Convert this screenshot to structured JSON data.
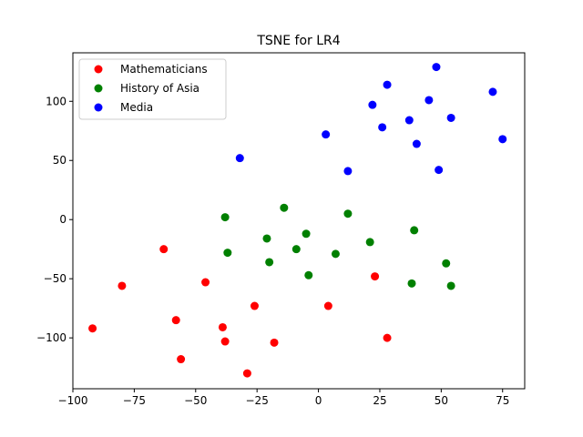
{
  "chart_data": {
    "type": "scatter",
    "title": "TSNE for LR4",
    "xlabel": "",
    "ylabel": "",
    "xlim": [
      -100,
      84
    ],
    "ylim": [
      -143,
      141
    ],
    "xticks": [
      -100,
      -75,
      -50,
      -25,
      0,
      25,
      50,
      75
    ],
    "yticks": [
      -100,
      -50,
      0,
      50,
      100
    ],
    "xtick_labels": [
      "−100",
      "−75",
      "−50",
      "−25",
      "0",
      "25",
      "50",
      "75"
    ],
    "ytick_labels": [
      "−100",
      "−50",
      "0",
      "50",
      "100"
    ],
    "legend_position": "upper-left",
    "grid": false,
    "series": [
      {
        "name": "Mathematicians",
        "color": "#ff0000",
        "points": [
          [
            -63,
            -25
          ],
          [
            -80,
            -56
          ],
          [
            -46,
            -53
          ],
          [
            -92,
            -92
          ],
          [
            -58,
            -85
          ],
          [
            -56,
            -118
          ],
          [
            -39,
            -91
          ],
          [
            -38,
            -103
          ],
          [
            -26,
            -73
          ],
          [
            -29,
            -130
          ],
          [
            -18,
            -104
          ],
          [
            4,
            -73
          ],
          [
            23,
            -48
          ],
          [
            28,
            -100
          ]
        ]
      },
      {
        "name": "History of Asia",
        "color": "#008000",
        "points": [
          [
            -38,
            2
          ],
          [
            -37,
            -28
          ],
          [
            -21,
            -16
          ],
          [
            -20,
            -36
          ],
          [
            -14,
            10
          ],
          [
            -9,
            -25
          ],
          [
            -5,
            -12
          ],
          [
            -4,
            -47
          ],
          [
            7,
            -29
          ],
          [
            12,
            5
          ],
          [
            21,
            -19
          ],
          [
            39,
            -9
          ],
          [
            38,
            -54
          ],
          [
            52,
            -37
          ],
          [
            54,
            -56
          ]
        ]
      },
      {
        "name": "Media",
        "color": "#0000ff",
        "points": [
          [
            -32,
            52
          ],
          [
            3,
            72
          ],
          [
            12,
            41
          ],
          [
            22,
            97
          ],
          [
            26,
            78
          ],
          [
            28,
            114
          ],
          [
            37,
            84
          ],
          [
            40,
            64
          ],
          [
            45,
            101
          ],
          [
            48,
            129
          ],
          [
            49,
            42
          ],
          [
            54,
            86
          ],
          [
            71,
            108
          ],
          [
            75,
            68
          ]
        ]
      }
    ]
  }
}
